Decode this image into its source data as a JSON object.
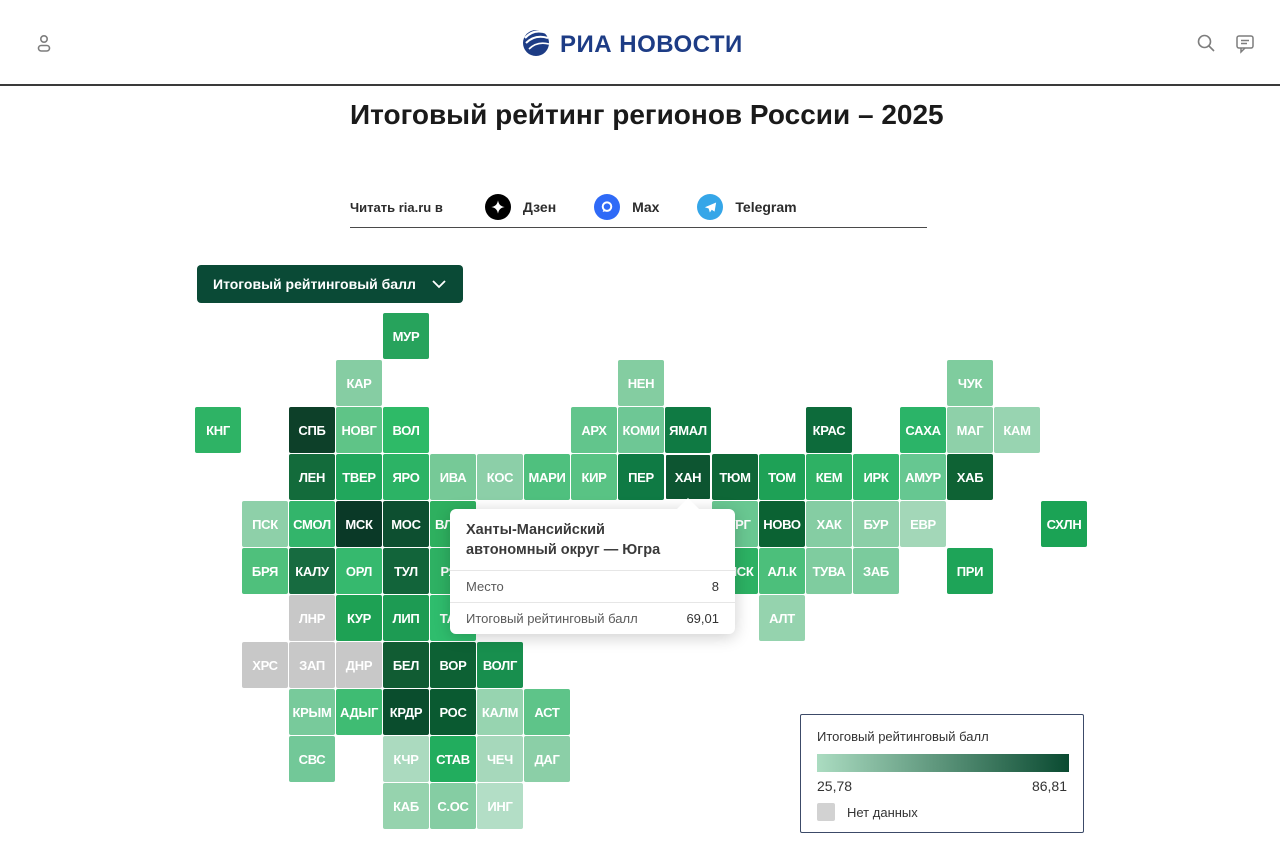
{
  "header": {
    "logo_text": "РИА НОВОСТИ",
    "icons": {
      "left": "user-icon",
      "right1": "search-icon",
      "right2": "comments-icon"
    }
  },
  "article": {
    "title": "Итоговый рейтинг регионов России – 2025",
    "read_in_label": "Читать ria.ru в",
    "socials": [
      {
        "name": "Дзен",
        "color": "#000000"
      },
      {
        "name": "Max",
        "color": "#2f6af7"
      },
      {
        "name": "Telegram",
        "color": "#35a6e8"
      }
    ]
  },
  "controls": {
    "metric_dropdown_label": "Итоговый рейтинговый балл"
  },
  "map": {
    "active_code": "ХАН",
    "tiles": [
      {
        "code": "МУР",
        "col": 4,
        "row": 0,
        "color": "#27a35c"
      },
      {
        "code": "КАР",
        "col": 3,
        "row": 1,
        "color": "#86cda3"
      },
      {
        "code": "НЕН",
        "col": 9,
        "row": 1,
        "color": "#84cda1"
      },
      {
        "code": "ЧУК",
        "col": 16,
        "row": 1,
        "color": "#7fcc9e"
      },
      {
        "code": "КНГ",
        "col": 0,
        "row": 2,
        "color": "#2eb365"
      },
      {
        "code": "СПБ",
        "col": 2,
        "row": 2,
        "color": "#0d4029"
      },
      {
        "code": "НОВГ",
        "col": 3,
        "row": 2,
        "color": "#5fc487"
      },
      {
        "code": "ВОЛ",
        "col": 4,
        "row": 2,
        "color": "#2eba67"
      },
      {
        "code": "АРХ",
        "col": 8,
        "row": 2,
        "color": "#62c58c"
      },
      {
        "code": "КОМИ",
        "col": 9,
        "row": 2,
        "color": "#6ec795"
      },
      {
        "code": "ЯМАЛ",
        "col": 10,
        "row": 2,
        "color": "#0f7a43"
      },
      {
        "code": "КРАС",
        "col": 13,
        "row": 2,
        "color": "#0d6b3b"
      },
      {
        "code": "САХА",
        "col": 15,
        "row": 2,
        "color": "#2bb468"
      },
      {
        "code": "МАГ",
        "col": 16,
        "row": 2,
        "color": "#8ed0a9"
      },
      {
        "code": "КАМ",
        "col": 17,
        "row": 2,
        "color": "#98d4b1"
      },
      {
        "code": "ЛЕН",
        "col": 2,
        "row": 3,
        "color": "#136b3b"
      },
      {
        "code": "ТВЕР",
        "col": 3,
        "row": 3,
        "color": "#21a75c"
      },
      {
        "code": "ЯРО",
        "col": 4,
        "row": 3,
        "color": "#2cb365"
      },
      {
        "code": "ИВА",
        "col": 5,
        "row": 3,
        "color": "#76c997"
      },
      {
        "code": "КОС",
        "col": 6,
        "row": 3,
        "color": "#8ccfa8"
      },
      {
        "code": "МАРИ",
        "col": 7,
        "row": 3,
        "color": "#4fc07e"
      },
      {
        "code": "КИР",
        "col": 8,
        "row": 3,
        "color": "#59c384"
      },
      {
        "code": "ПЕР",
        "col": 9,
        "row": 3,
        "color": "#0f7a44"
      },
      {
        "code": "ХАН",
        "col": 10,
        "row": 3,
        "color": "#0d5531"
      },
      {
        "code": "ТЮМ",
        "col": 11,
        "row": 3,
        "color": "#0e6737"
      },
      {
        "code": "ТОМ",
        "col": 12,
        "row": 3,
        "color": "#1ea156"
      },
      {
        "code": "КЕМ",
        "col": 13,
        "row": 3,
        "color": "#2eb164"
      },
      {
        "code": "ИРК",
        "col": 14,
        "row": 3,
        "color": "#32b76b"
      },
      {
        "code": "АМУР",
        "col": 15,
        "row": 3,
        "color": "#66c791"
      },
      {
        "code": "ХАБ",
        "col": 16,
        "row": 3,
        "color": "#0e6234"
      },
      {
        "code": "ПСК",
        "col": 1,
        "row": 4,
        "color": "#8ed0a9"
      },
      {
        "code": "СМОЛ",
        "col": 2,
        "row": 4,
        "color": "#33b56b"
      },
      {
        "code": "МСК",
        "col": 3,
        "row": 4,
        "color": "#0a3927"
      },
      {
        "code": "МОС",
        "col": 4,
        "row": 4,
        "color": "#0d4f30"
      },
      {
        "code": "ВЛАД",
        "col": 5,
        "row": 4,
        "color": "#2eb05f"
      },
      {
        "code": "КУРГ",
        "col": 11,
        "row": 4,
        "color": "#69c791"
      },
      {
        "code": "НОВО",
        "col": 12,
        "row": 4,
        "color": "#0b6233"
      },
      {
        "code": "ХАК",
        "col": 13,
        "row": 4,
        "color": "#85cda3"
      },
      {
        "code": "БУР",
        "col": 14,
        "row": 4,
        "color": "#8bcfa7"
      },
      {
        "code": "ЕВР",
        "col": 15,
        "row": 4,
        "color": "#a3d7b8"
      },
      {
        "code": "СХЛН",
        "col": 18,
        "row": 4,
        "color": "#1ba355"
      },
      {
        "code": "БРЯ",
        "col": 1,
        "row": 5,
        "color": "#4fc07c"
      },
      {
        "code": "КАЛУ",
        "col": 2,
        "row": 5,
        "color": "#176b40"
      },
      {
        "code": "ОРЛ",
        "col": 3,
        "row": 5,
        "color": "#36b96e"
      },
      {
        "code": "ТУЛ",
        "col": 4,
        "row": 5,
        "color": "#12643a"
      },
      {
        "code": "РЯЗ",
        "col": 5,
        "row": 5,
        "color": "#2eb163"
      },
      {
        "code": "ОМСК",
        "col": 11,
        "row": 5,
        "color": "#2cb163"
      },
      {
        "code": "АЛ.К",
        "col": 12,
        "row": 5,
        "color": "#4cbf7b"
      },
      {
        "code": "ТУВА",
        "col": 13,
        "row": 5,
        "color": "#7fcc9f"
      },
      {
        "code": "ЗАБ",
        "col": 14,
        "row": 5,
        "color": "#7bcb9d"
      },
      {
        "code": "ПРИ",
        "col": 16,
        "row": 5,
        "color": "#1ea458"
      },
      {
        "code": "ЛНР",
        "col": 2,
        "row": 6,
        "color": "#c8c8c8"
      },
      {
        "code": "КУР",
        "col": 3,
        "row": 6,
        "color": "#1ea154"
      },
      {
        "code": "ЛИП",
        "col": 4,
        "row": 6,
        "color": "#1d9b53"
      },
      {
        "code": "ТАМ",
        "col": 5,
        "row": 6,
        "color": "#2fbd6d"
      },
      {
        "code": "АЛТ",
        "col": 12,
        "row": 6,
        "color": "#95d3ae"
      },
      {
        "code": "ХРС",
        "col": 1,
        "row": 7,
        "color": "#c8c8c8"
      },
      {
        "code": "ЗАП",
        "col": 2,
        "row": 7,
        "color": "#c8c8c8"
      },
      {
        "code": "ДНР",
        "col": 3,
        "row": 7,
        "color": "#c8c8c8"
      },
      {
        "code": "БЕЛ",
        "col": 4,
        "row": 7,
        "color": "#115c33"
      },
      {
        "code": "ВОР",
        "col": 5,
        "row": 7,
        "color": "#0d6134"
      },
      {
        "code": "ВОЛГ",
        "col": 6,
        "row": 7,
        "color": "#188f4e"
      },
      {
        "code": "КРЫМ",
        "col": 2,
        "row": 8,
        "color": "#78ca9b"
      },
      {
        "code": "АДЫГ",
        "col": 3,
        "row": 8,
        "color": "#3fbc73"
      },
      {
        "code": "КРДР",
        "col": 4,
        "row": 8,
        "color": "#0a4d2d"
      },
      {
        "code": "РОС",
        "col": 5,
        "row": 8,
        "color": "#0a5a31"
      },
      {
        "code": "КАЛМ",
        "col": 6,
        "row": 8,
        "color": "#97d4b0"
      },
      {
        "code": "АСТ",
        "col": 7,
        "row": 8,
        "color": "#5ec489"
      },
      {
        "code": "СВС",
        "col": 2,
        "row": 9,
        "color": "#72c898"
      },
      {
        "code": "КЧР",
        "col": 4,
        "row": 9,
        "color": "#abdabf"
      },
      {
        "code": "СТАВ",
        "col": 5,
        "row": 9,
        "color": "#22ad5e"
      },
      {
        "code": "ЧЕЧ",
        "col": 6,
        "row": 9,
        "color": "#a6d8bb"
      },
      {
        "code": "ДАГ",
        "col": 7,
        "row": 9,
        "color": "#8bcfa7"
      },
      {
        "code": "КАБ",
        "col": 4,
        "row": 10,
        "color": "#96d3ae"
      },
      {
        "code": "С.ОС",
        "col": 5,
        "row": 10,
        "color": "#85cda3"
      },
      {
        "code": "ИНГ",
        "col": 6,
        "row": 10,
        "color": "#b3dec6"
      }
    ]
  },
  "tooltip": {
    "title": "Ханты-Мансийский автономный округ — Югра",
    "rows": [
      {
        "label": "Место",
        "value": "8"
      },
      {
        "label": "Итоговый рейтинговый балл",
        "value": "69,01"
      }
    ]
  },
  "legend": {
    "title": "Итоговый рейтинговый балл",
    "min": "25,78",
    "max": "86,81",
    "no_data_label": "Нет данных",
    "gradient_from": "#abdcc1",
    "gradient_to": "#0a4a31",
    "no_data_color": "#d2d2d2"
  }
}
